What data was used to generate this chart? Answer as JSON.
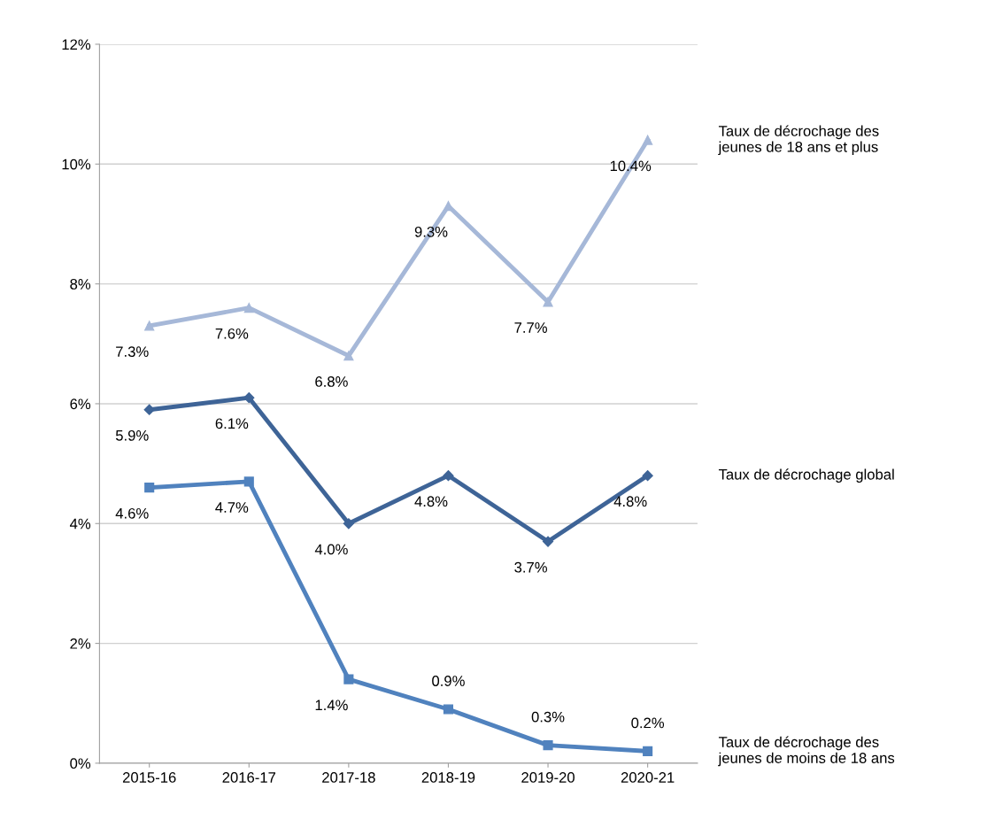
{
  "chart_data": {
    "type": "line",
    "categories": [
      "2015-16",
      "2016-17",
      "2017-18",
      "2018-19",
      "2019-20",
      "2020-21"
    ],
    "series": [
      {
        "name": "Taux de décrochage des\njeunes de 18 ans et plus",
        "color": "#a6b8d8",
        "marker": "triangle",
        "values": [
          7.3,
          7.6,
          6.8,
          9.3,
          7.7,
          10.4
        ],
        "value_labels": [
          "7.3%",
          "7.6%",
          "6.8%",
          "9.3%",
          "7.7%",
          "10.4%"
        ]
      },
      {
        "name": "Taux de décrochage global",
        "color": "#3e6497",
        "marker": "diamond",
        "values": [
          5.9,
          6.1,
          4.0,
          4.8,
          3.7,
          4.8
        ],
        "value_labels": [
          "5.9%",
          "6.1%",
          "4.0%",
          "4.8%",
          "3.7%",
          "4.8%"
        ]
      },
      {
        "name": "Taux de décrochage des\njeunes de moins de 18 ans",
        "color": "#5082be",
        "marker": "square",
        "values": [
          4.6,
          4.7,
          1.4,
          0.9,
          0.3,
          0.2
        ],
        "value_labels": [
          "4.6%",
          "4.7%",
          "1.4%",
          "0.9%",
          "0.3%",
          "0.2%"
        ]
      }
    ],
    "ylim": [
      0,
      12
    ],
    "yticks": [
      {
        "value": 0,
        "label": "0%"
      },
      {
        "value": 2,
        "label": "2%"
      },
      {
        "value": 4,
        "label": "4%"
      },
      {
        "value": 6,
        "label": "6%"
      },
      {
        "value": 8,
        "label": "8%"
      },
      {
        "value": 10,
        "label": "10%"
      },
      {
        "value": 12,
        "label": "12%"
      }
    ],
    "grid": "y",
    "legend": false,
    "line_style": "solid"
  }
}
